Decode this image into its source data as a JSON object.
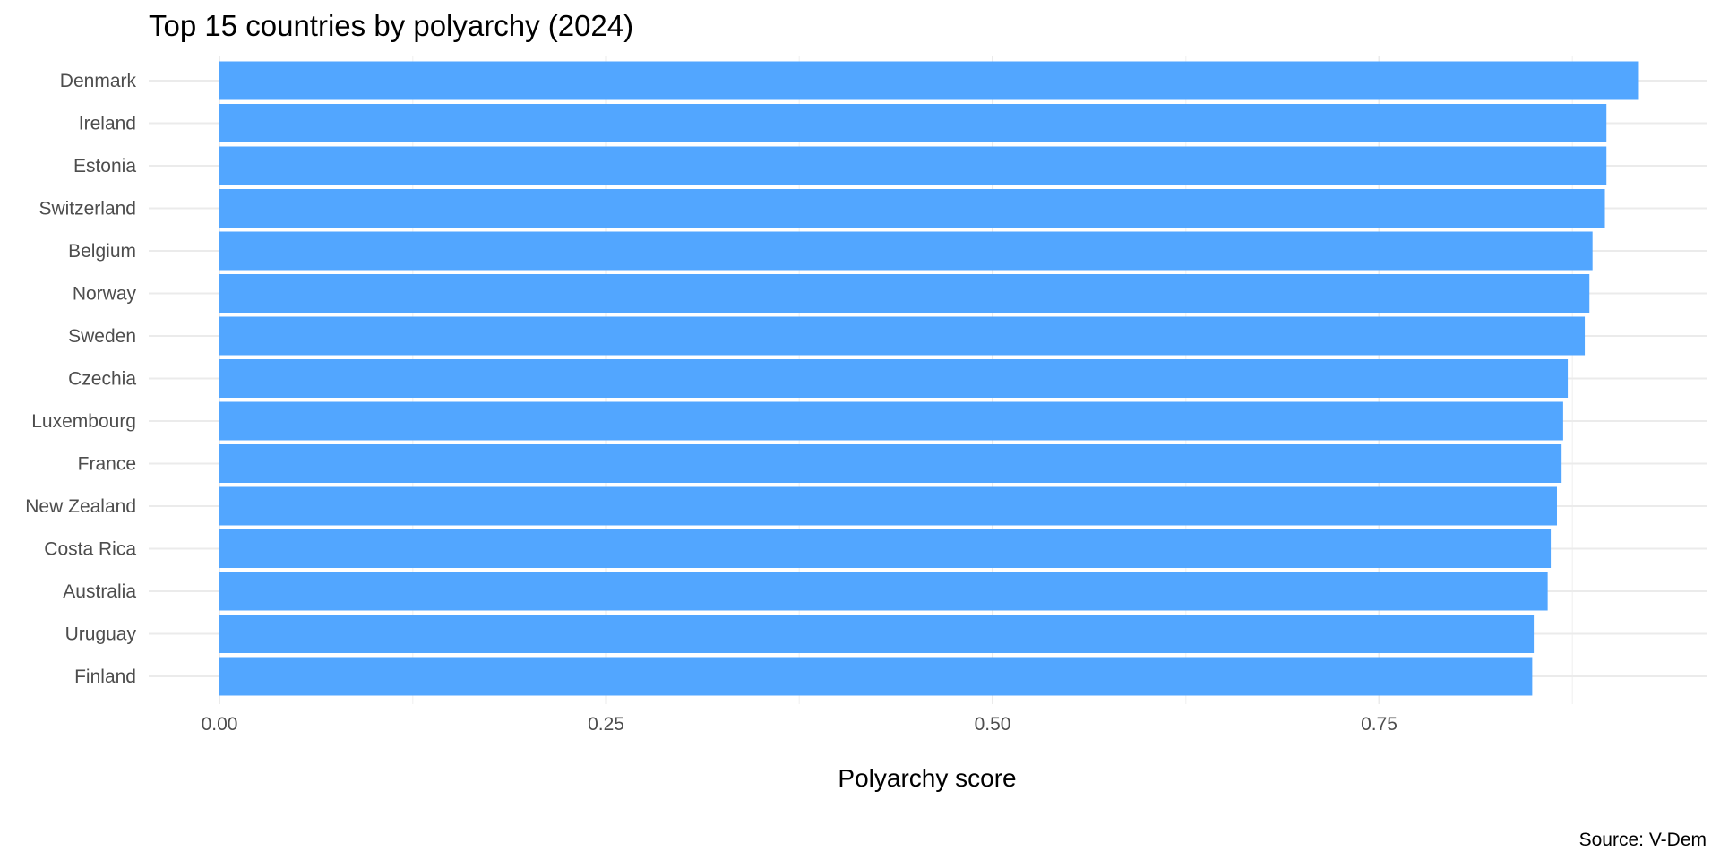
{
  "chart_data": {
    "type": "bar",
    "orientation": "horizontal",
    "title": "Top 15 countries by polyarchy (2024)",
    "xlabel": "Polyarchy score",
    "ylabel": "",
    "caption": "Source: V-Dem",
    "xlim": [
      0,
      1
    ],
    "x_ticks": [
      "0.00",
      "0.25",
      "0.50",
      "0.75"
    ],
    "grid": true,
    "bar_color": "#52A6FF",
    "categories": [
      "Denmark",
      "Ireland",
      "Estonia",
      "Switzerland",
      "Belgium",
      "Norway",
      "Sweden",
      "Czechia",
      "Luxembourg",
      "France",
      "New Zealand",
      "Costa Rica",
      "Australia",
      "Uruguay",
      "Finland"
    ],
    "values": [
      0.918,
      0.897,
      0.897,
      0.896,
      0.888,
      0.886,
      0.883,
      0.872,
      0.869,
      0.868,
      0.865,
      0.861,
      0.859,
      0.85,
      0.849
    ]
  }
}
